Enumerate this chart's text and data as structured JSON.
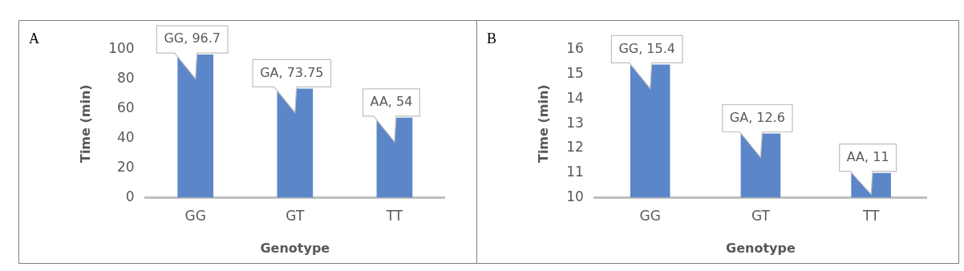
{
  "chart_data": [
    {
      "type": "bar",
      "annotations": [
        "A"
      ],
      "xlabel": "Genotype",
      "ylabel": "Time (min)",
      "categories": [
        "GG",
        "GT",
        "TT"
      ],
      "values": [
        96.7,
        73.75,
        54
      ],
      "value_labels": [
        "GG, 96.7",
        "GA, 73.75",
        "AA, 54"
      ],
      "color": "#5b86c8",
      "ylim": [
        0,
        100
      ],
      "yticks": [
        0,
        20,
        40,
        60,
        80,
        100
      ],
      "grid": false,
      "legend": false
    },
    {
      "type": "bar",
      "annotations": [
        "B"
      ],
      "xlabel": "Genotype",
      "ylabel": "Time (min)",
      "categories": [
        "GG",
        "GT",
        "TT"
      ],
      "values": [
        15.4,
        12.6,
        11
      ],
      "value_labels": [
        "GG, 15.4",
        "GA, 12.6",
        "AA, 11"
      ],
      "color": "#5b86c8",
      "ylim": [
        10,
        16
      ],
      "yticks": [
        10,
        11,
        12,
        13,
        14,
        15,
        16
      ],
      "grid": false,
      "legend": false
    }
  ]
}
